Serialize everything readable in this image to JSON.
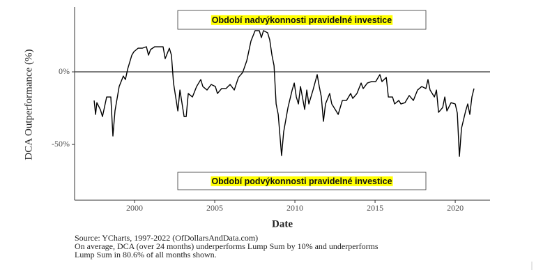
{
  "chart_data": {
    "type": "line",
    "y_label": "DCA Outperformance (%)",
    "x_label": "Date",
    "annotations": [
      "Období nadvýkonnosti pravidelné investice",
      "Období podvýkonnosti pravidelné investice"
    ],
    "source": "Source:  YCharts, 1997-2022 (OfDollarsAndData.com)",
    "notes": [
      "On average, DCA (over 24 months) underperforms Lump Sum by 10% and underperforms",
      "Lump Sum in 80.6% of all months shown."
    ],
    "color": "#000000",
    "xlim": [
      1996.26,
      2022.17
    ],
    "ylim": [
      -88.4,
      44.7
    ],
    "xticks": [
      2000,
      2005,
      2010,
      2015,
      2020
    ],
    "yticks": [
      {
        "value": 0,
        "label": "0%"
      },
      {
        "value": -50,
        "label": "-50%"
      }
    ],
    "x": [
      1997.48,
      1997.57,
      1997.65,
      1997.87,
      1998.0,
      1998.26,
      1998.52,
      1998.65,
      1998.78,
      1999.04,
      1999.3,
      1999.43,
      1999.57,
      1999.83,
      1999.96,
      2000.22,
      2000.48,
      2000.74,
      2000.87,
      2001.0,
      2001.26,
      2001.52,
      2001.78,
      2001.91,
      2002.17,
      2002.3,
      2002.43,
      2002.7,
      2002.83,
      2003.09,
      2003.22,
      2003.35,
      2003.61,
      2003.87,
      2004.13,
      2004.26,
      2004.52,
      2004.78,
      2005.04,
      2005.17,
      2005.43,
      2005.7,
      2005.96,
      2006.22,
      2006.48,
      2006.74,
      2007.0,
      2007.26,
      2007.52,
      2007.78,
      2007.91,
      2008.04,
      2008.3,
      2008.43,
      2008.57,
      2008.7,
      2008.83,
      2008.96,
      2009.17,
      2009.3,
      2009.57,
      2009.83,
      2009.96,
      2010.09,
      2010.22,
      2010.35,
      2010.61,
      2010.74,
      2010.87,
      2011.13,
      2011.39,
      2011.52,
      2011.65,
      2011.78,
      2011.91,
      2012.17,
      2012.3,
      2012.57,
      2012.7,
      2012.96,
      2013.22,
      2013.48,
      2013.61,
      2013.87,
      2014.13,
      2014.26,
      2014.52,
      2014.78,
      2015.04,
      2015.3,
      2015.43,
      2015.7,
      2015.83,
      2016.09,
      2016.22,
      2016.48,
      2016.61,
      2016.87,
      2017.13,
      2017.39,
      2017.65,
      2017.91,
      2018.17,
      2018.3,
      2018.43,
      2018.7,
      2018.83,
      2018.96,
      2019.22,
      2019.35,
      2019.48,
      2019.74,
      2020.0,
      2020.13,
      2020.26,
      2020.39,
      2020.65,
      2020.78,
      2020.91,
      2021.04,
      2021.17
    ],
    "values": [
      -19.7,
      -29.3,
      -21.2,
      -26,
      -30.8,
      -17.3,
      -17.3,
      -44.2,
      -26.9,
      -10.1,
      -2.9,
      -5.3,
      1.9,
      11.5,
      13.9,
      16.3,
      16.3,
      17.3,
      11.5,
      15.4,
      17.3,
      17.3,
      17.3,
      9.1,
      16.3,
      11.5,
      -7.7,
      -26.9,
      -12.5,
      -30.8,
      -30.8,
      -14.9,
      -17.3,
      -10.1,
      -5.3,
      -10.1,
      -12.5,
      -8.7,
      -10.1,
      -14.9,
      -11.5,
      -11.5,
      -8.7,
      -12.5,
      -3.8,
      -0.5,
      7.7,
      21.2,
      28.4,
      28.4,
      23.6,
      28.4,
      26.9,
      22.1,
      11.5,
      4.3,
      -22.1,
      -29.3,
      -57.7,
      -41.3,
      -24.5,
      -12.5,
      -7.7,
      -17.3,
      -22.1,
      -10.1,
      -25.9,
      -12.5,
      -22.1,
      -12.5,
      -1.9,
      -10.1,
      -17.3,
      -34.1,
      -22.1,
      -14.9,
      -22.1,
      -26.9,
      -29.3,
      -19.7,
      -19.7,
      -14.9,
      -18.3,
      -14.9,
      -7.7,
      -11.5,
      -7.7,
      -6.7,
      -6.7,
      -1.9,
      -6.7,
      -3.8,
      -17.3,
      -17.3,
      -22.1,
      -19.7,
      -22.1,
      -21.2,
      -16.3,
      -19.7,
      -12.5,
      -10.1,
      -11.5,
      -5.3,
      -12.5,
      -17.3,
      -12.5,
      -27.9,
      -24.5,
      -17.3,
      -26.9,
      -21.2,
      -22.1,
      -28.4,
      -58.2,
      -38.9,
      -26.9,
      -22.1,
      -29.3,
      -17.3,
      -11.5
    ]
  }
}
